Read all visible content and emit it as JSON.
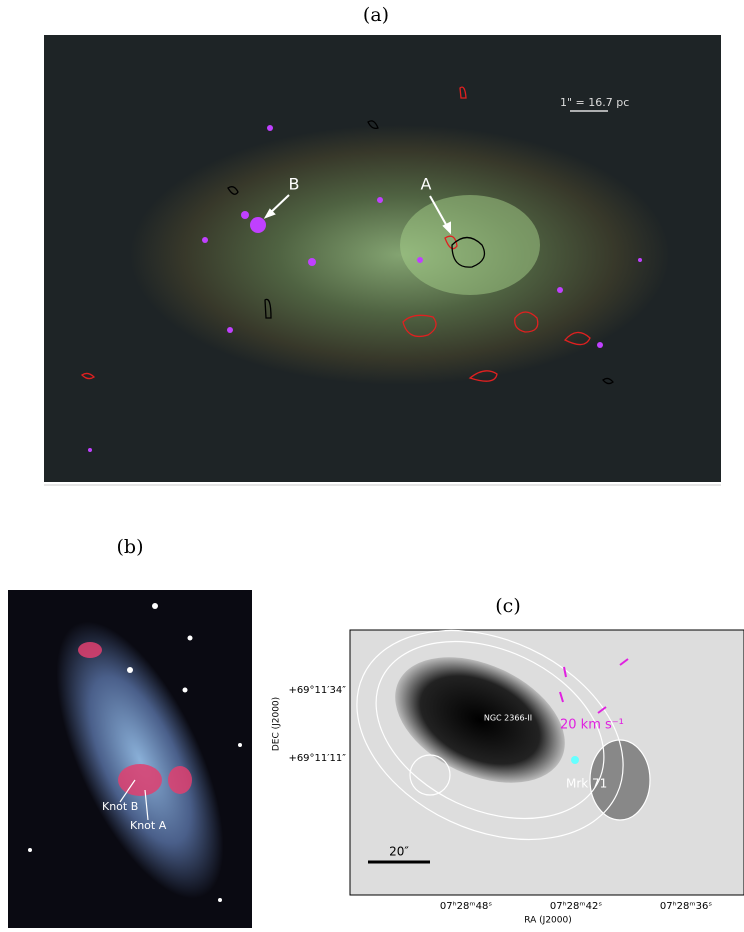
{
  "panel_a": {
    "label": "(a)",
    "marker_b": "B",
    "marker_a": "A",
    "scale": "1\" = 16.7 pc"
  },
  "panel_b": {
    "label": "(b)",
    "knot_b": "Knot B",
    "knot_a": "Knot A"
  },
  "panel_c": {
    "label": "(c)",
    "yticks": [
      "+69°11′34″",
      "+69°11′11″"
    ],
    "ylabel": "DEC (J2000)",
    "xticks": [
      "07ʰ28ᵐ48ˢ",
      "07ʰ28ᵐ42ˢ",
      "07ʰ28ᵐ36ˢ"
    ],
    "xlabel": "RA (J2000)",
    "source": "NGC 2366-II",
    "velocity": "20 km s⁻¹",
    "target": "Mrk 71",
    "scalebar": "20″"
  }
}
